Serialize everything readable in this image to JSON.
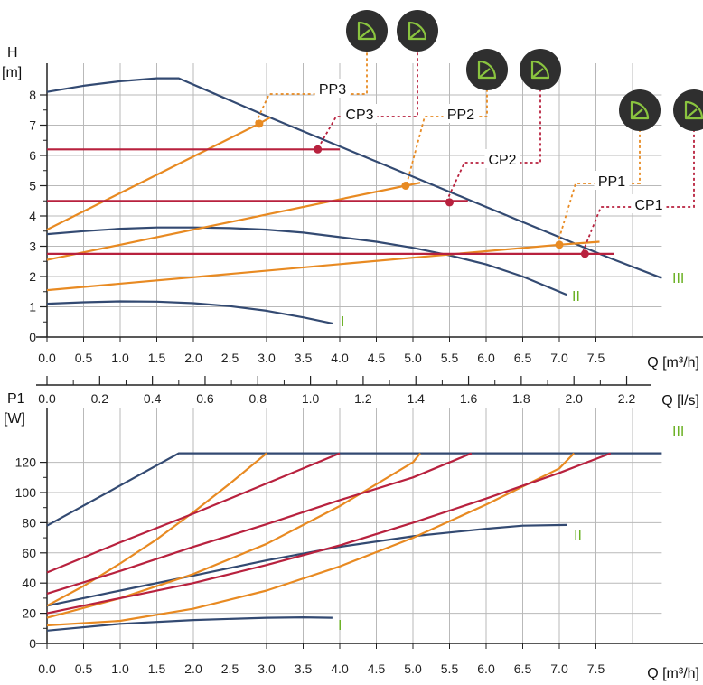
{
  "colors": {
    "navy": "#334a72",
    "orange": "#e88a22",
    "crimson": "#b8213e",
    "grid": "#b9b9b9",
    "axis": "#222222",
    "label_green": "#6ab023",
    "badge_bg": "#2f2f2f",
    "badge_icon": "#8ac43f"
  },
  "chart_data": [
    {
      "name": "head-chart",
      "type": "line",
      "title": "",
      "ylabel": "H",
      "yunit": "[m]",
      "xlabel": "Q [m³/h]",
      "xlim": [
        0,
        8
      ],
      "ylim": [
        0,
        9
      ],
      "xticks": [
        "0.0",
        "0.5",
        "1.0",
        "1.5",
        "2.0",
        "2.5",
        "3.0",
        "3.5",
        "4.0",
        "4.5",
        "5.0",
        "5.5",
        "6.0",
        "6.5",
        "7.0",
        "7.5"
      ],
      "yticks": [
        "0",
        "1",
        "2",
        "3",
        "4",
        "5",
        "6",
        "7",
        "8"
      ],
      "secondary_axis": {
        "label": "Q [l/s]",
        "ticks": [
          "0.0",
          "0.2",
          "0.4",
          "0.6",
          "0.8",
          "1.0",
          "1.2",
          "1.4",
          "1.6",
          "1.8",
          "2.0",
          "2.2"
        ]
      },
      "grid": true,
      "series": [
        {
          "name": "III",
          "color": "navy",
          "x": [
            0.0,
            0.5,
            1.0,
            1.5,
            1.8,
            3.0,
            4.0,
            5.0,
            6.0,
            7.0,
            7.7,
            8.4
          ],
          "y": [
            8.1,
            8.3,
            8.45,
            8.55,
            8.55,
            7.3,
            6.3,
            5.3,
            4.3,
            3.3,
            2.6,
            1.95
          ]
        },
        {
          "name": "II",
          "color": "navy",
          "x": [
            0.0,
            0.5,
            1.0,
            1.5,
            2.0,
            2.5,
            3.0,
            3.5,
            4.0,
            4.5,
            5.0,
            5.5,
            6.0,
            6.5,
            7.1
          ],
          "y": [
            3.4,
            3.5,
            3.58,
            3.62,
            3.62,
            3.6,
            3.55,
            3.45,
            3.3,
            3.15,
            2.95,
            2.7,
            2.4,
            2.0,
            1.4
          ]
        },
        {
          "name": "I",
          "color": "navy",
          "x": [
            0.0,
            0.5,
            1.0,
            1.5,
            2.0,
            2.5,
            3.0,
            3.5,
            3.9
          ],
          "y": [
            1.1,
            1.15,
            1.18,
            1.17,
            1.12,
            1.02,
            0.87,
            0.65,
            0.45
          ]
        },
        {
          "name": "PP3",
          "color": "orange",
          "x": [
            0.0,
            2.9,
            3.05
          ],
          "y": [
            3.55,
            7.05,
            7.25
          ]
        },
        {
          "name": "PP2",
          "color": "orange",
          "x": [
            0.0,
            4.9,
            5.1
          ],
          "y": [
            2.55,
            5.0,
            5.1
          ]
        },
        {
          "name": "PP1",
          "color": "orange",
          "x": [
            0.0,
            7.0,
            7.55
          ],
          "y": [
            1.55,
            3.05,
            3.15
          ]
        },
        {
          "name": "CP3",
          "color": "crimson",
          "x": [
            0.0,
            4.0
          ],
          "y": [
            6.2,
            6.2
          ]
        },
        {
          "name": "CP2",
          "color": "crimson",
          "x": [
            0.0,
            5.75
          ],
          "y": [
            4.5,
            4.5
          ]
        },
        {
          "name": "CP1",
          "color": "crimson",
          "x": [
            0.0,
            7.75
          ],
          "y": [
            2.75,
            2.75
          ]
        }
      ],
      "points": [
        {
          "series": "PP3",
          "x": 2.9,
          "y": 7.05,
          "color": "orange"
        },
        {
          "series": "CP3",
          "x": 3.7,
          "y": 6.2,
          "color": "crimson"
        },
        {
          "series": "PP2",
          "x": 4.9,
          "y": 5.0,
          "color": "orange"
        },
        {
          "series": "CP2",
          "x": 5.5,
          "y": 4.45,
          "color": "crimson"
        },
        {
          "series": "PP1",
          "x": 7.0,
          "y": 3.05,
          "color": "orange"
        },
        {
          "series": "CP1",
          "x": 7.35,
          "y": 2.75,
          "color": "crimson"
        }
      ],
      "curve_labels": [
        "III",
        "II",
        "I"
      ],
      "callouts": [
        "PP3",
        "CP3",
        "PP2",
        "CP2",
        "PP1",
        "CP1"
      ],
      "mode_icons": [
        "eco-mode-icon"
      ]
    },
    {
      "name": "power-chart",
      "type": "line",
      "title": "",
      "ylabel": "P1",
      "yunit": "[W]",
      "xlabel": "Q [m³/h]",
      "xlim": [
        0,
        8
      ],
      "ylim": [
        0,
        130
      ],
      "xticks": [
        "0.0",
        "0.5",
        "1.0",
        "1.5",
        "2.0",
        "2.5",
        "3.0",
        "3.5",
        "4.0",
        "4.5",
        "5.0",
        "5.5",
        "6.0",
        "6.5",
        "7.0",
        "7.5"
      ],
      "yticks": [
        "0",
        "20",
        "40",
        "60",
        "80",
        "100",
        "120"
      ],
      "grid": true,
      "series": [
        {
          "name": "III",
          "color": "navy",
          "x": [
            0.0,
            1.8,
            8.4
          ],
          "y": [
            78,
            126,
            126
          ]
        },
        {
          "name": "II",
          "color": "navy",
          "x": [
            0.0,
            1.0,
            2.0,
            3.0,
            4.0,
            5.0,
            6.0,
            6.5,
            7.1
          ],
          "y": [
            25,
            35,
            45,
            55,
            64,
            71,
            76,
            78,
            78.5
          ]
        },
        {
          "name": "I",
          "color": "navy",
          "x": [
            0.0,
            1.0,
            2.0,
            3.0,
            3.5,
            3.9
          ],
          "y": [
            8.5,
            13,
            15.5,
            17,
            17.3,
            17
          ]
        },
        {
          "name": "PP3",
          "color": "orange",
          "x": [
            0.0,
            0.5,
            1.0,
            1.5,
            2.0,
            2.5,
            3.0
          ],
          "y": [
            25,
            38,
            53,
            69,
            87,
            106,
            126
          ]
        },
        {
          "name": "PP2",
          "color": "orange",
          "x": [
            0.0,
            1.0,
            2.0,
            3.0,
            4.0,
            5.0,
            5.1
          ],
          "y": [
            17,
            30,
            46,
            66,
            91,
            120,
            126
          ]
        },
        {
          "name": "PP1",
          "color": "orange",
          "x": [
            0.0,
            1.0,
            2.0,
            3.0,
            4.0,
            5.0,
            6.0,
            7.0,
            7.2
          ],
          "y": [
            12,
            15,
            23,
            35,
            51,
            70,
            92,
            116,
            126
          ]
        },
        {
          "name": "CP3",
          "color": "crimson",
          "x": [
            0.0,
            1.0,
            2.0,
            3.0,
            4.0
          ],
          "y": [
            47,
            67,
            86,
            106,
            126
          ]
        },
        {
          "name": "CP2",
          "color": "crimson",
          "x": [
            0.0,
            1.0,
            2.0,
            3.0,
            4.0,
            5.0,
            5.8
          ],
          "y": [
            33,
            48,
            64,
            79,
            95,
            110,
            126
          ]
        },
        {
          "name": "CP1",
          "color": "crimson",
          "x": [
            0.0,
            1.0,
            2.0,
            3.0,
            4.0,
            5.0,
            6.0,
            7.0,
            7.7
          ],
          "y": [
            20,
            30,
            40,
            52,
            65,
            80,
            96,
            113,
            126
          ]
        }
      ],
      "curve_labels": [
        "III",
        "II",
        "I"
      ]
    }
  ]
}
